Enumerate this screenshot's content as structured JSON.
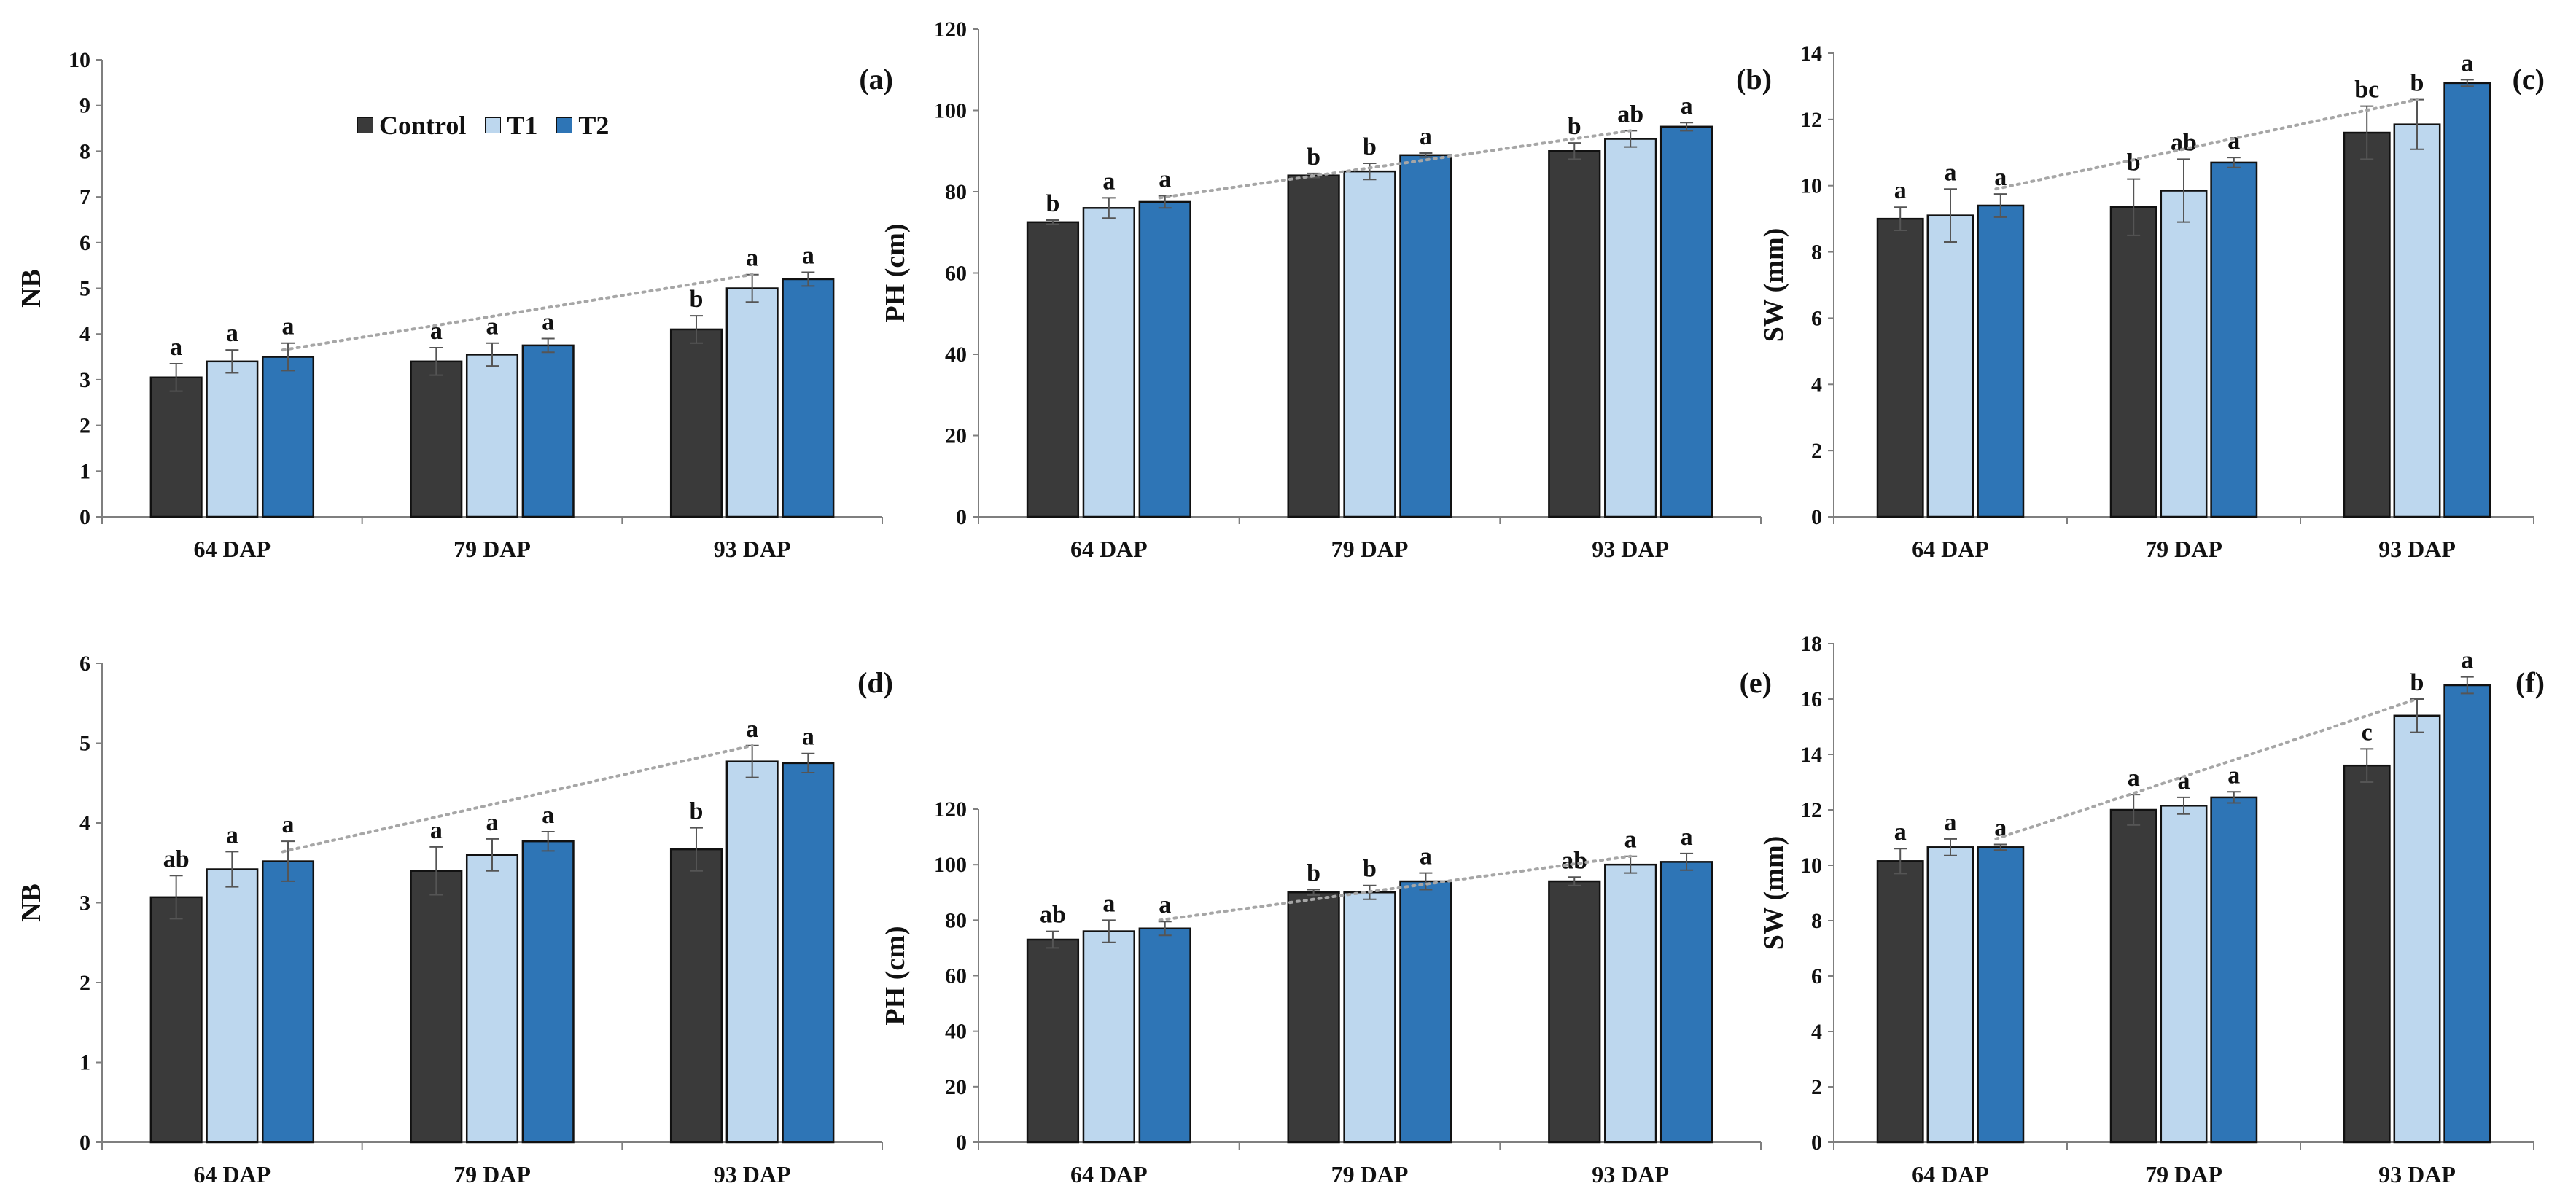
{
  "colors": {
    "control": "#3a3a3a",
    "t1": "#bdd7ee",
    "t2": "#2e75b6",
    "axis": "#7f7f7f",
    "text": "#111111",
    "trend": "#a6a6a6"
  },
  "legend": {
    "items": [
      {
        "label": "Control",
        "color_key": "control"
      },
      {
        "label": "T1",
        "color_key": "t1"
      },
      {
        "label": "T2",
        "color_key": "t2"
      }
    ]
  },
  "chart_data": [
    {
      "id": "a",
      "type": "bar",
      "panel_label": "(a)",
      "ylabel": "NB",
      "ylim": [
        0,
        10
      ],
      "yticks": [
        0,
        1,
        2,
        3,
        4,
        5,
        6,
        7,
        8,
        9,
        10
      ],
      "categories": [
        "64 DAP",
        "79 DAP",
        "93 DAP"
      ],
      "series": [
        {
          "name": "Control",
          "color_key": "control",
          "values": [
            3.05,
            3.4,
            4.1
          ],
          "errors": [
            0.3,
            0.3,
            0.3
          ],
          "letters": [
            "a",
            "a",
            "b"
          ]
        },
        {
          "name": "T1",
          "color_key": "t1",
          "values": [
            3.4,
            3.55,
            5.0
          ],
          "errors": [
            0.25,
            0.25,
            0.3
          ],
          "letters": [
            "a",
            "a",
            "a"
          ]
        },
        {
          "name": "T2",
          "color_key": "t2",
          "values": [
            3.5,
            3.75,
            5.2
          ],
          "errors": [
            0.3,
            0.15,
            0.15
          ],
          "letters": [
            "a",
            "a",
            "a"
          ]
        }
      ]
    },
    {
      "id": "b",
      "type": "bar",
      "panel_label": "(b)",
      "ylabel": "PH (cm)",
      "ylim": [
        0,
        120
      ],
      "yticks": [
        0,
        20,
        40,
        60,
        80,
        100,
        120
      ],
      "categories": [
        "64 DAP",
        "79 DAP",
        "93 DAP"
      ],
      "series": [
        {
          "name": "Control",
          "color_key": "control",
          "values": [
            72.5,
            84,
            90
          ],
          "errors": [
            0.5,
            0.5,
            2
          ],
          "letters": [
            "b",
            "b",
            "b"
          ]
        },
        {
          "name": "T1",
          "color_key": "t1",
          "values": [
            76,
            85,
            93
          ],
          "errors": [
            2.5,
            2,
            2
          ],
          "letters": [
            "a",
            "b",
            "ab"
          ]
        },
        {
          "name": "T2",
          "color_key": "t2",
          "values": [
            77.5,
            89,
            96
          ],
          "errors": [
            1.5,
            0.5,
            1
          ],
          "letters": [
            "a",
            "a",
            "a"
          ]
        }
      ]
    },
    {
      "id": "c",
      "type": "bar",
      "panel_label": "(c)",
      "ylabel": "SW (mm)",
      "ylim": [
        0,
        14
      ],
      "yticks": [
        0,
        2,
        4,
        6,
        8,
        10,
        12,
        14
      ],
      "categories": [
        "64 DAP",
        "79 DAP",
        "93 DAP"
      ],
      "series": [
        {
          "name": "Control",
          "color_key": "control",
          "values": [
            9.0,
            9.35,
            11.6
          ],
          "errors": [
            0.35,
            0.85,
            0.8
          ],
          "letters": [
            "a",
            "b",
            "bc"
          ]
        },
        {
          "name": "T1",
          "color_key": "t1",
          "values": [
            9.1,
            9.85,
            11.85
          ],
          "errors": [
            0.8,
            0.95,
            0.75
          ],
          "letters": [
            "a",
            "ab",
            "b"
          ]
        },
        {
          "name": "T2",
          "color_key": "t2",
          "values": [
            9.4,
            10.7,
            13.1
          ],
          "errors": [
            0.35,
            0.15,
            0.1
          ],
          "letters": [
            "a",
            "a",
            "a"
          ]
        }
      ]
    },
    {
      "id": "d",
      "type": "bar",
      "panel_label": "(d)",
      "ylabel": "NB",
      "ylim": [
        0,
        6
      ],
      "yticks": [
        0,
        1,
        2,
        3,
        4,
        5,
        6
      ],
      "categories": [
        "64 DAP",
        "79 DAP",
        "93 DAP"
      ],
      "series": [
        {
          "name": "Control",
          "color_key": "control",
          "values": [
            3.07,
            3.4,
            3.67
          ],
          "errors": [
            0.27,
            0.3,
            0.27
          ],
          "letters": [
            "ab",
            "a",
            "b"
          ]
        },
        {
          "name": "T1",
          "color_key": "t1",
          "values": [
            3.42,
            3.6,
            4.77
          ],
          "errors": [
            0.22,
            0.2,
            0.2
          ],
          "letters": [
            "a",
            "a",
            "a"
          ]
        },
        {
          "name": "T2",
          "color_key": "t2",
          "values": [
            3.52,
            3.77,
            4.75
          ],
          "errors": [
            0.25,
            0.12,
            0.12
          ],
          "letters": [
            "a",
            "a",
            "a"
          ]
        }
      ]
    },
    {
      "id": "e",
      "type": "bar",
      "panel_label": "(e)",
      "ylabel": "PH (cm)",
      "ylim": [
        0,
        120
      ],
      "yticks": [
        0,
        20,
        40,
        60,
        80,
        100,
        120
      ],
      "categories": [
        "64 DAP",
        "79 DAP",
        "93 DAP"
      ],
      "series": [
        {
          "name": "Control",
          "color_key": "control",
          "values": [
            73,
            90,
            94
          ],
          "errors": [
            3,
            1,
            1.5
          ],
          "letters": [
            "ab",
            "b",
            "ab"
          ]
        },
        {
          "name": "T1",
          "color_key": "t1",
          "values": [
            76,
            90,
            100
          ],
          "errors": [
            4,
            2.5,
            3
          ],
          "letters": [
            "a",
            "b",
            "a"
          ]
        },
        {
          "name": "T2",
          "color_key": "t2",
          "values": [
            77,
            94,
            101
          ],
          "errors": [
            2.5,
            3,
            3
          ],
          "letters": [
            "a",
            "a",
            "a"
          ]
        }
      ]
    },
    {
      "id": "f",
      "type": "bar",
      "panel_label": "(f)",
      "ylabel": "SW (mm)",
      "ylim": [
        0,
        18
      ],
      "yticks": [
        0,
        2,
        4,
        6,
        8,
        10,
        12,
        14,
        16,
        18
      ],
      "categories": [
        "64 DAP",
        "79 DAP",
        "93 DAP"
      ],
      "series": [
        {
          "name": "Control",
          "color_key": "control",
          "values": [
            10.15,
            12.0,
            13.6
          ],
          "errors": [
            0.45,
            0.55,
            0.6
          ],
          "letters": [
            "a",
            "a",
            "c"
          ]
        },
        {
          "name": "T1",
          "color_key": "t1",
          "values": [
            10.65,
            12.15,
            15.4
          ],
          "errors": [
            0.3,
            0.3,
            0.6
          ],
          "letters": [
            "a",
            "a",
            "b"
          ]
        },
        {
          "name": "T2",
          "color_key": "t2",
          "values": [
            10.65,
            12.45,
            16.5
          ],
          "errors": [
            0.1,
            0.2,
            0.3
          ],
          "letters": [
            "a",
            "a",
            "a"
          ]
        }
      ]
    }
  ]
}
